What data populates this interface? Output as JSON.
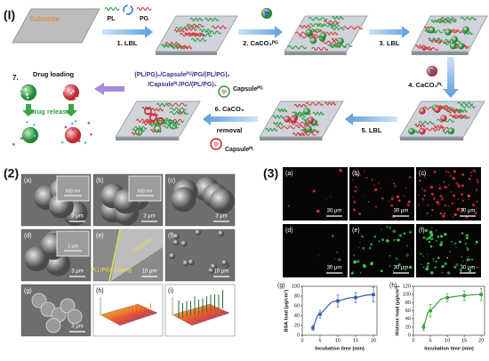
{
  "scheme": {
    "label": "(I)",
    "substrate": "Substrate",
    "pl": "PL",
    "pg": "PG",
    "step1": "1. LBL",
    "step2": "2. CaCO₃ᴾᴳ",
    "step3": "3. LBL",
    "step4": "4. CaCO₃ᴾᴸ",
    "step5": "5. LBL",
    "step6": [
      "6. CaCO₃",
      "removal"
    ],
    "capsule_pg": "Capsuleᴾᴳ",
    "capsule_pl": "Capsuleᴾᴸ",
    "film_formula": [
      "(PL/PG)₅/Capsuleᴾᴳ/PG/(PL/PG)₂",
      "/Capsuleᴾᴸ/PG/(PL/PG)₂"
    ],
    "drug_step": "7.",
    "drug_loading": "Drug loading",
    "drug_release": "Drug release"
  },
  "sem": {
    "label": "(2)",
    "panels": [
      {
        "tag": "(a)",
        "scale": "3 μm",
        "inset_scale": "500 nm"
      },
      {
        "tag": "(b)",
        "scale": "3 μm",
        "inset_scale": "500 nm"
      },
      {
        "tag": "(c)",
        "scale": "3 μm"
      },
      {
        "tag": "(d)",
        "scale": "3 μm",
        "inset_scale": "1 μm"
      },
      {
        "tag": "(e)",
        "scale": "10 μm",
        "substrate": "Substrate",
        "coating": "PLL/PGA coating"
      },
      {
        "tag": "(f)",
        "scale": "10 μm"
      },
      {
        "tag": "(g)",
        "scale": "3 μm"
      },
      {
        "tag": "(h)"
      },
      {
        "tag": "(i)"
      }
    ]
  },
  "fluorescence": {
    "label": "(3)",
    "panels": [
      {
        "tag": "(a)",
        "scale": "30 μm"
      },
      {
        "tag": "(b)",
        "scale": "30 μm"
      },
      {
        "tag": "(c)",
        "scale": "30 μm"
      },
      {
        "tag": "(d)",
        "scale": "30 μm"
      },
      {
        "tag": "(e)",
        "scale": "30 μm"
      },
      {
        "tag": "(f)",
        "scale": "30 μm"
      }
    ]
  },
  "chart_data": [
    {
      "type": "line",
      "tag": "(g)",
      "x": [
        3,
        5,
        10,
        15,
        20
      ],
      "values": [
        15,
        43,
        70,
        77,
        83
      ],
      "errors": [
        5,
        8,
        12,
        10,
        15
      ],
      "color": "#2f5fb3",
      "xlim": [
        0,
        21
      ],
      "ylim": [
        0,
        100
      ],
      "xticks": [
        0,
        5,
        10,
        15,
        20
      ],
      "yticks": [
        0,
        20,
        40,
        60,
        80,
        100
      ],
      "xlabel": "Incubation time (min)",
      "ylabel": "BSA load (μg/cm²)"
    },
    {
      "type": "line",
      "tag": "(h)",
      "x": [
        3,
        5,
        10,
        15,
        20
      ],
      "values": [
        20,
        60,
        92,
        97,
        100
      ],
      "errors": [
        8,
        15,
        10,
        12,
        15
      ],
      "color": "#3aa03a",
      "xlim": [
        0,
        21
      ],
      "ylim": [
        0,
        120
      ],
      "xticks": [
        0,
        5,
        10,
        15,
        20
      ],
      "yticks": [
        0,
        20,
        40,
        60,
        80,
        100,
        120
      ],
      "xlabel": "Incubation time (min)",
      "ylabel": "Histone load (μg/cm²)"
    }
  ]
}
